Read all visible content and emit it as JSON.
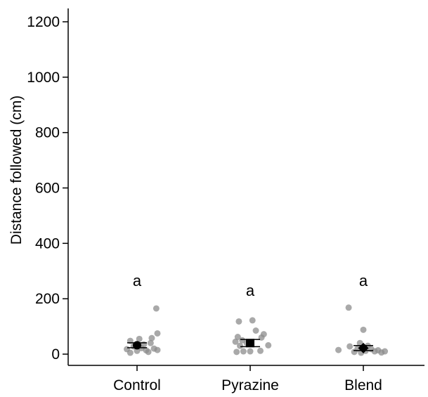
{
  "chart_data": {
    "type": "scatter",
    "ylabel": "Distance followed (cm)",
    "xlabel": "",
    "ylim": [
      -20,
      1240
    ],
    "yticks": [
      0,
      200,
      400,
      600,
      800,
      1000,
      1200
    ],
    "categories": [
      "Control",
      "Pyrazine",
      "Blend"
    ],
    "groups": [
      {
        "category": "Control",
        "marker": "circle",
        "letter": "a",
        "mean": 32,
        "error": 9,
        "points": [
          {
            "x": -0.09,
            "y": 18
          },
          {
            "x": -0.06,
            "y": 5
          },
          {
            "x": -0.06,
            "y": 48
          },
          {
            "x": -0.03,
            "y": 28
          },
          {
            "x": 0.0,
            "y": 12
          },
          {
            "x": 0.02,
            "y": 55
          },
          {
            "x": 0.04,
            "y": 22
          },
          {
            "x": 0.06,
            "y": 35
          },
          {
            "x": 0.08,
            "y": 14
          },
          {
            "x": 0.1,
            "y": 8
          },
          {
            "x": 0.12,
            "y": 40
          },
          {
            "x": 0.13,
            "y": 58
          },
          {
            "x": 0.15,
            "y": 20
          },
          {
            "x": 0.17,
            "y": 165
          },
          {
            "x": 0.18,
            "y": 75
          },
          {
            "x": 0.18,
            "y": 15
          }
        ]
      },
      {
        "category": "Pyrazine",
        "marker": "square",
        "letter": "a",
        "mean": 40,
        "error": 13,
        "points": [
          {
            "x": -0.13,
            "y": 45
          },
          {
            "x": -0.12,
            "y": 8
          },
          {
            "x": -0.11,
            "y": 62
          },
          {
            "x": -0.1,
            "y": 118
          },
          {
            "x": -0.09,
            "y": 30
          },
          {
            "x": -0.07,
            "y": 50
          },
          {
            "x": -0.06,
            "y": 10
          },
          {
            "x": -0.03,
            "y": 40
          },
          {
            "x": 0.0,
            "y": 10
          },
          {
            "x": 0.02,
            "y": 122
          },
          {
            "x": 0.05,
            "y": 85
          },
          {
            "x": 0.09,
            "y": 12
          },
          {
            "x": 0.1,
            "y": 60
          },
          {
            "x": 0.12,
            "y": 72
          },
          {
            "x": 0.16,
            "y": 32
          }
        ]
      },
      {
        "category": "Blend",
        "marker": "diamond",
        "letter": "a",
        "mean": 22,
        "error": 9,
        "points": [
          {
            "x": -0.22,
            "y": 15
          },
          {
            "x": -0.13,
            "y": 168
          },
          {
            "x": -0.12,
            "y": 28
          },
          {
            "x": -0.08,
            "y": 8
          },
          {
            "x": -0.05,
            "y": 20
          },
          {
            "x": -0.03,
            "y": 40
          },
          {
            "x": -0.02,
            "y": 5
          },
          {
            "x": 0.0,
            "y": 88
          },
          {
            "x": 0.02,
            "y": 12
          },
          {
            "x": 0.04,
            "y": 30
          },
          {
            "x": 0.07,
            "y": 18
          },
          {
            "x": 0.1,
            "y": 10
          },
          {
            "x": 0.13,
            "y": 14
          },
          {
            "x": 0.16,
            "y": 6
          },
          {
            "x": 0.19,
            "y": 10
          }
        ]
      }
    ],
    "colors": {
      "points": "#8c8c8c",
      "mean_marker": "#000000",
      "axis": "#000000"
    },
    "grid": false
  }
}
